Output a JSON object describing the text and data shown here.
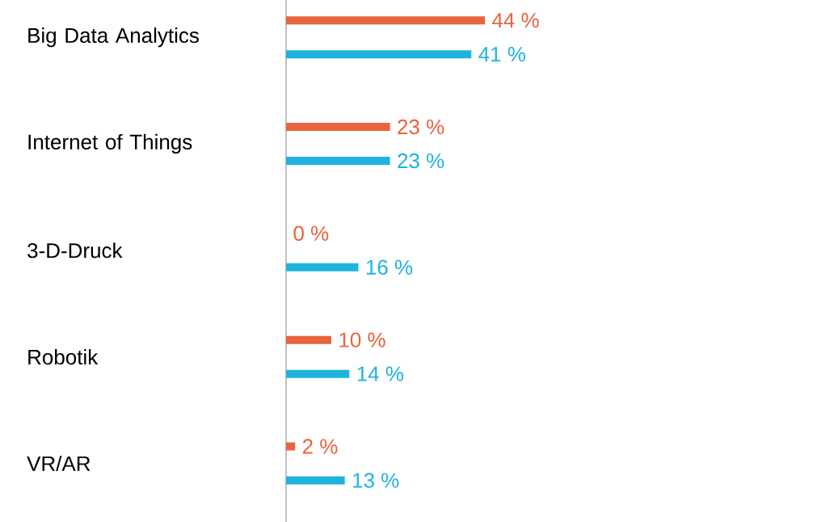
{
  "chart_data": {
    "type": "bar",
    "orientation": "horizontal",
    "categories": [
      "Big Data Analytics",
      "Internet of Things",
      "3-D-Druck",
      "Robotik",
      "VR/AR"
    ],
    "series": [
      {
        "color": "#e8643c",
        "values": [
          44,
          23,
          0,
          10,
          2
        ],
        "value_labels": [
          "44 %",
          "23 %",
          "0 %",
          "10 %",
          "2 %"
        ]
      },
      {
        "color": "#1fb3e0",
        "values": [
          41,
          23,
          16,
          14,
          13
        ],
        "value_labels": [
          "41 %",
          "23 %",
          "16 %",
          "14 %",
          "13 %"
        ]
      }
    ]
  }
}
